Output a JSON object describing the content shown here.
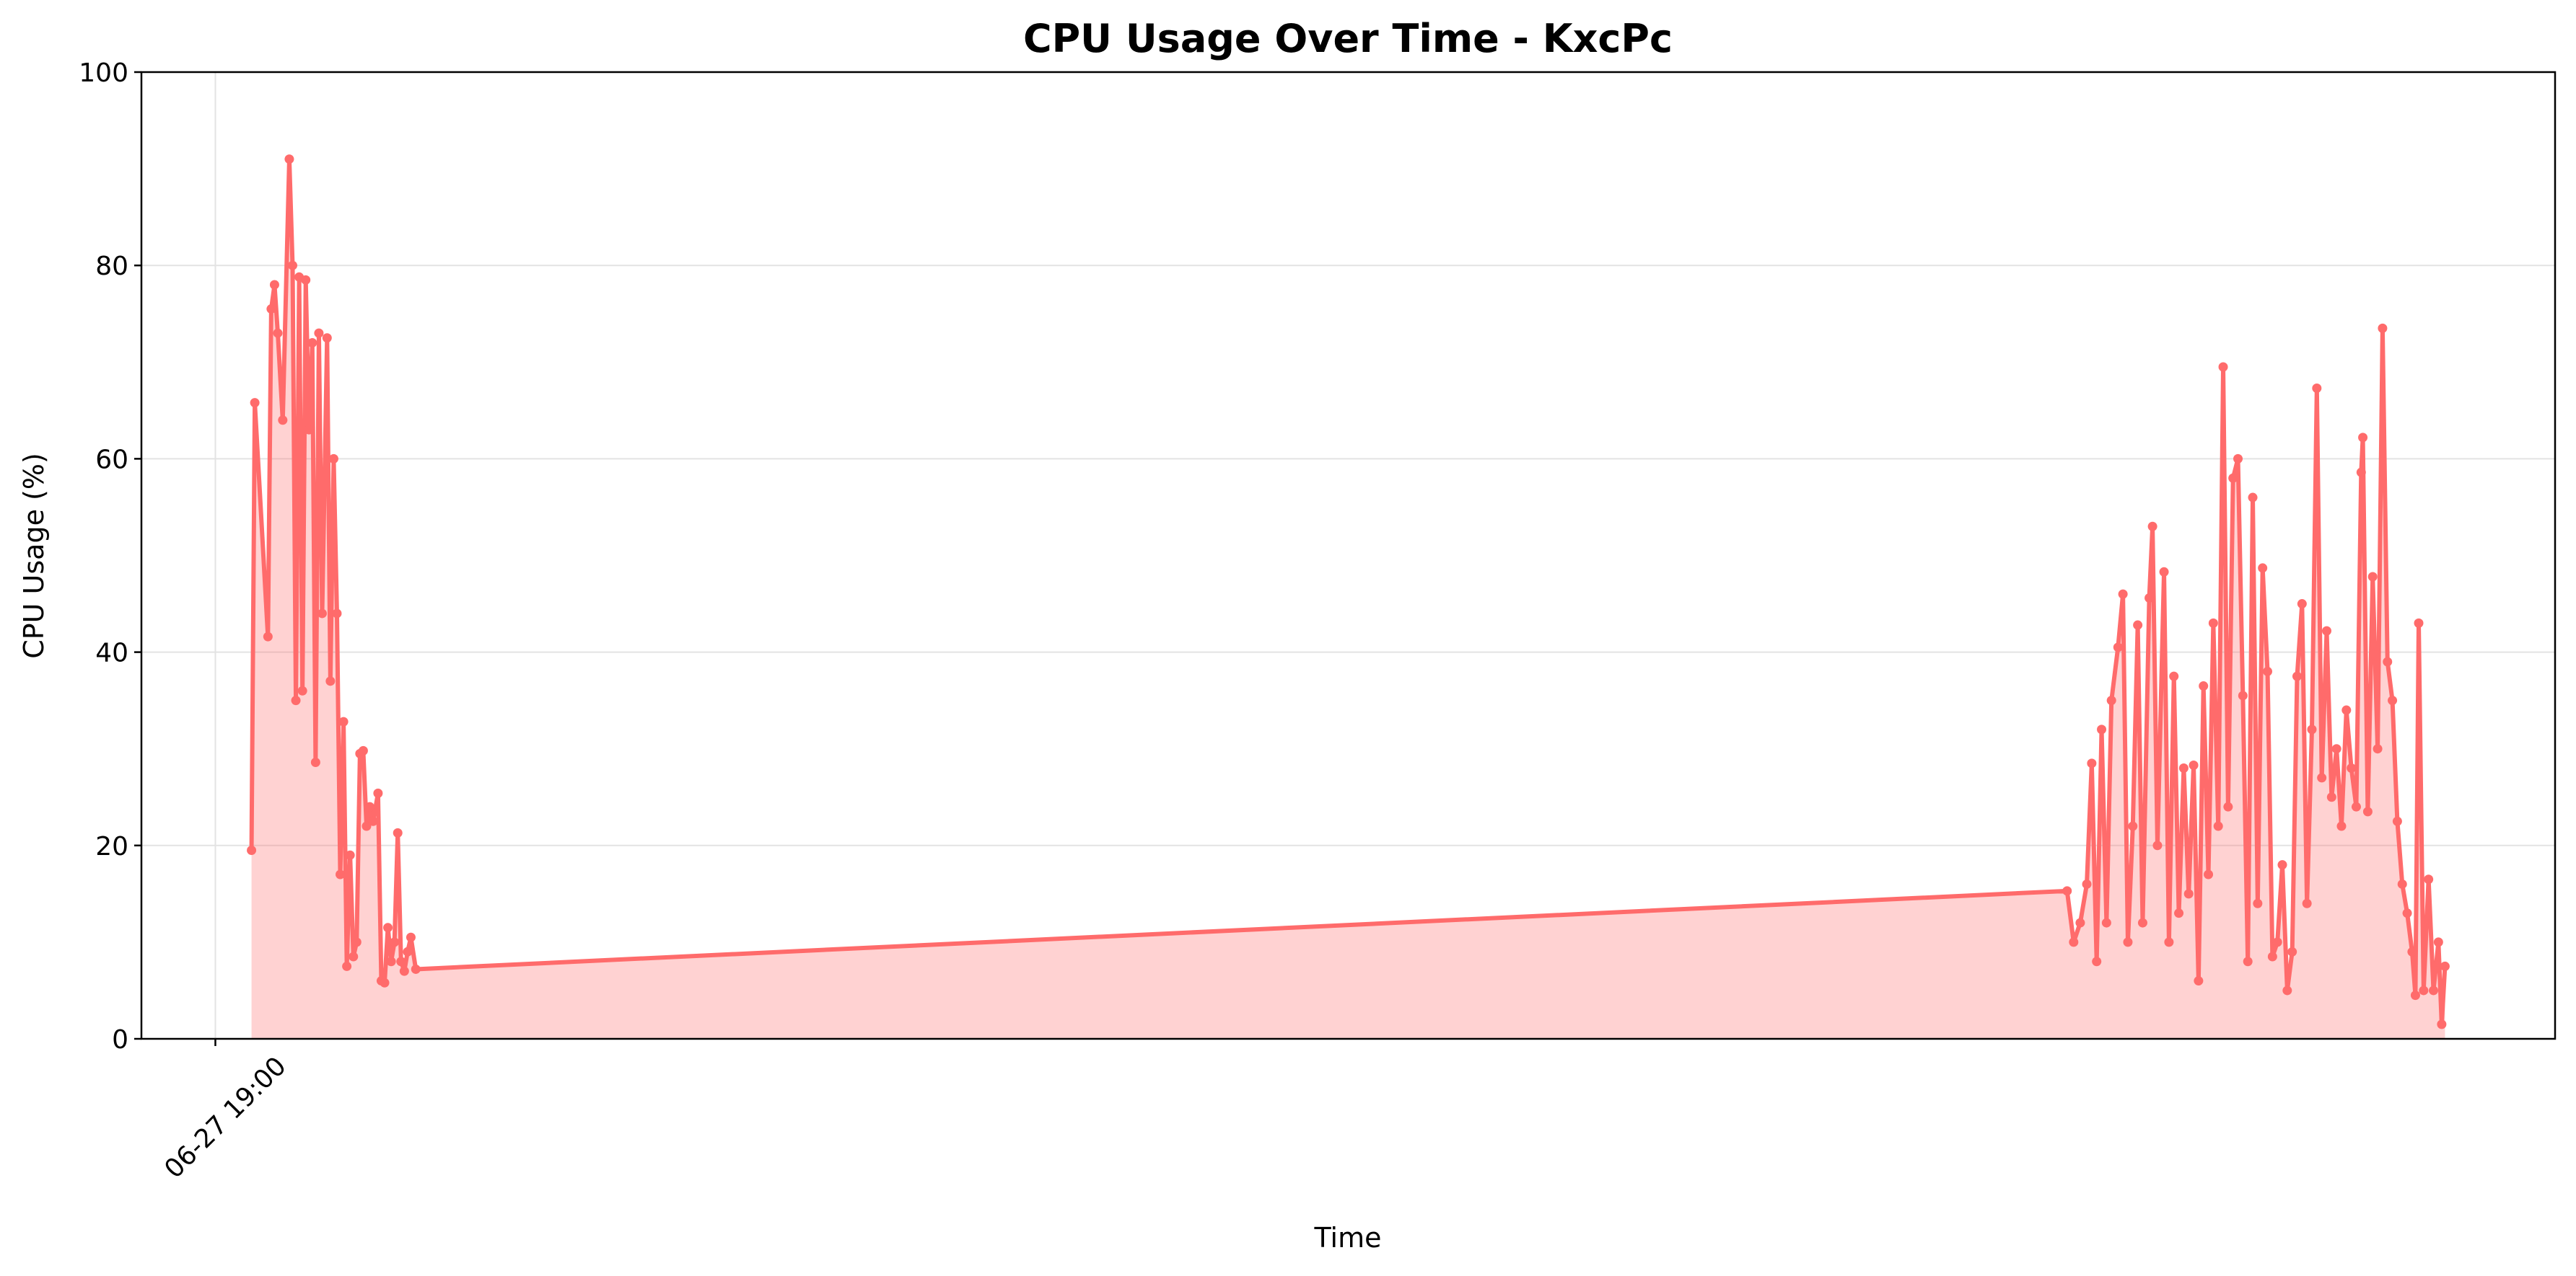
{
  "chart_data": {
    "type": "line",
    "title": "CPU Usage Over Time - KxcPc",
    "xlabel": "Time",
    "ylabel": "CPU Usage (%)",
    "color": "#ff6b6b",
    "fill": true,
    "markers": true,
    "grid": true,
    "xlim": [
      18.955,
      20.424
    ],
    "xticks": [
      {
        "value": 19,
        "label": "06-27 19:00"
      }
    ],
    "ylim": [
      0,
      100
    ],
    "yticks": [
      0,
      20,
      40,
      60,
      80,
      100
    ],
    "x": [
      19.022,
      19.024,
      19.032,
      19.034,
      19.036,
      19.038,
      19.041,
      19.045,
      19.047,
      19.049,
      19.051,
      19.053,
      19.055,
      19.057,
      19.059,
      19.061,
      19.063,
      19.065,
      19.068,
      19.07,
      19.072,
      19.074,
      19.076,
      19.078,
      19.08,
      19.082,
      19.084,
      19.086,
      19.088,
      19.09,
      19.092,
      19.094,
      19.096,
      19.099,
      19.101,
      19.103,
      19.105,
      19.107,
      19.109,
      19.111,
      19.113,
      19.115,
      19.117,
      19.119,
      19.122,
      20.127,
      20.131,
      20.135,
      20.139,
      20.142,
      20.145,
      20.148,
      20.151,
      20.154,
      20.158,
      20.161,
      20.164,
      20.167,
      20.17,
      20.173,
      20.177,
      20.179,
      20.182,
      20.186,
      20.189,
      20.192,
      20.195,
      20.198,
      20.201,
      20.204,
      20.207,
      20.21,
      20.213,
      20.216,
      20.219,
      20.222,
      20.225,
      20.228,
      20.231,
      20.234,
      20.237,
      20.24,
      20.243,
      20.246,
      20.249,
      20.252,
      20.255,
      20.258,
      20.261,
      20.264,
      20.267,
      20.27,
      20.273,
      20.276,
      20.279,
      20.282,
      20.285,
      20.288,
      20.291,
      20.294,
      20.297,
      20.3,
      20.303,
      20.306,
      20.307,
      20.31,
      20.313,
      20.316,
      20.319,
      20.322,
      20.325,
      20.328,
      20.331,
      20.334,
      20.337,
      20.339,
      20.341,
      20.344,
      20.347,
      20.35,
      20.353,
      20.355,
      20.357
    ],
    "values": [
      19.5,
      65.8,
      41.6,
      75.5,
      78,
      73,
      64,
      91,
      80,
      35,
      78.8,
      36,
      78.5,
      63,
      72,
      28.6,
      73,
      44,
      72.5,
      37,
      60,
      44,
      17,
      32.8,
      7.5,
      19,
      8.5,
      10,
      29.5,
      29.8,
      22,
      24,
      22.5,
      25.4,
      6,
      5.8,
      11.5,
      8,
      10,
      21.3,
      8,
      7,
      9,
      10.5,
      7.2,
      15.3,
      10,
      12,
      16,
      28.5,
      8,
      32,
      12,
      35,
      40.5,
      46,
      10,
      22,
      42.8,
      12,
      45.6,
      53,
      20,
      48.3,
      10,
      37.5,
      13,
      28,
      15,
      28.3,
      6,
      36.5,
      17,
      43,
      22,
      69.5,
      24,
      58,
      60,
      35.5,
      8,
      56,
      14,
      48.7,
      38,
      8.5,
      10,
      18,
      5,
      9,
      37.5,
      45,
      14,
      32,
      67.3,
      27,
      42.2,
      25,
      30,
      22,
      34,
      28,
      24,
      58.6,
      62.2,
      23.5,
      47.8,
      30,
      73.5,
      39,
      35,
      22.5,
      16,
      13,
      9,
      4.5,
      43,
      5,
      16.5,
      5,
      10,
      1.5,
      7.5
    ]
  }
}
